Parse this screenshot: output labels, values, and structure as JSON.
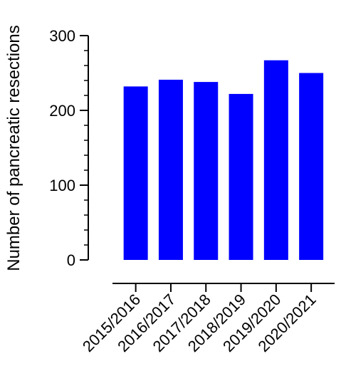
{
  "chart_data": {
    "type": "bar",
    "title": "",
    "xlabel": "",
    "ylabel": "Number of pancreatic resections",
    "categories": [
      "2015/2016",
      "2016/2017",
      "2017/2018",
      "2018/2019",
      "2019/2020",
      "2020/2021"
    ],
    "values": [
      232,
      241,
      238,
      222,
      267,
      250
    ],
    "ylim": [
      0,
      300
    ],
    "yticks": [
      0,
      100,
      200,
      300
    ],
    "ytick_labels": [
      "0",
      "100",
      "200",
      "300"
    ],
    "y_minor_step": 20,
    "grid": false,
    "legend": "none",
    "bar_color": "#0000ff"
  }
}
